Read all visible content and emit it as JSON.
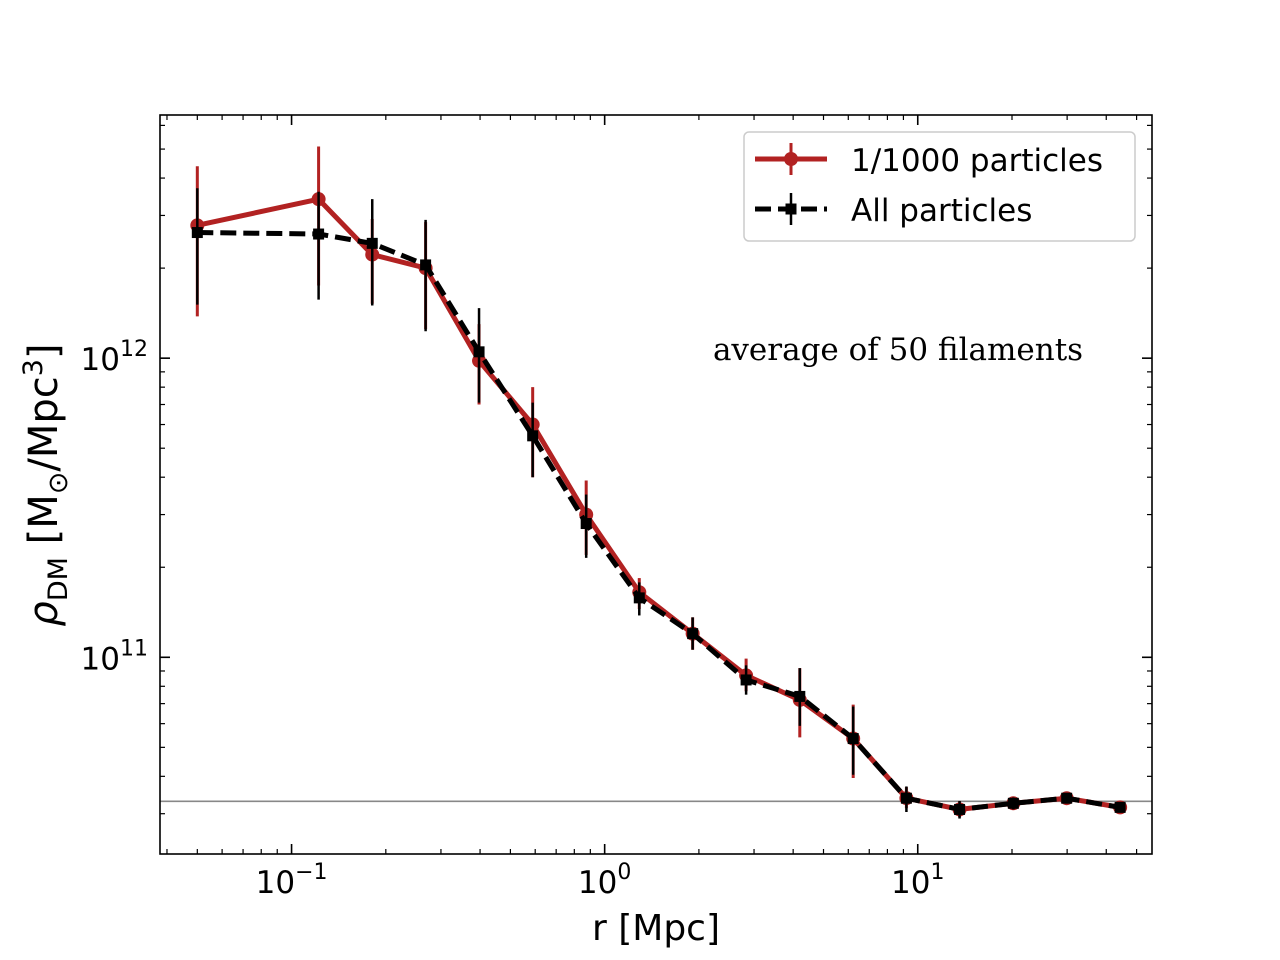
{
  "chart_data": {
    "type": "line",
    "title": "",
    "xlabel": "r [Mpc]",
    "ylabel": "ρ_DM [M⊙/Mpc³]",
    "xscale": "log",
    "yscale": "log",
    "xlim": [
      0.038,
      56
    ],
    "ylim": [
      22000000000,
      6500000000000
    ],
    "x_ticks": [
      {
        "value": 0.1,
        "base": "10",
        "exp": "−1"
      },
      {
        "value": 1,
        "base": "10",
        "exp": "0"
      },
      {
        "value": 10,
        "base": "10",
        "exp": "1"
      }
    ],
    "y_ticks": [
      {
        "value": 100000000000,
        "base": "10",
        "exp": "11"
      },
      {
        "value": 1000000000000,
        "base": "10",
        "exp": "12"
      }
    ],
    "annotation": "average of 50 filaments",
    "reference_line": {
      "y": 33000000000,
      "color": "#888888"
    },
    "legend_position": "upper right",
    "series": [
      {
        "name": "1/1000 particles",
        "color": "#b22222",
        "style": "solid",
        "marker": "circle",
        "x": [
          0.05,
          0.122,
          0.181,
          0.268,
          0.397,
          0.589,
          0.873,
          1.29,
          1.91,
          2.83,
          4.2,
          6.22,
          9.2,
          13.6,
          20.2,
          29.9,
          44.3
        ],
        "y": [
          2780000000000.0,
          3400000000000.0,
          2220000000000.0,
          2000000000000.0,
          980000000000.0,
          600000000000.0,
          300000000000.0,
          165000000000.0,
          120000000000.0,
          87000000000.0,
          72000000000.0,
          53500000000.0,
          33800000000.0,
          31000000000.0,
          32500000000.0,
          33800000000.0,
          31500000000.0
        ],
        "yerr_low": [
          1400000000000.0,
          1650000000000.0,
          700000000000.0,
          750000000000.0,
          280000000000.0,
          200000000000.0,
          80000000000.0,
          20000000000.0,
          14000000000.0,
          10000000000.0,
          18000000000.0,
          14000000000.0,
          2500000000.0,
          1800000000.0,
          1500000000.0,
          1200000000.0,
          1200000000.0
        ],
        "yerr_high": [
          1600000000000.0,
          1700000000000.0,
          700000000000.0,
          850000000000.0,
          320000000000.0,
          200000000000.0,
          90000000000.0,
          19000000000.0,
          16000000000.0,
          12000000000.0,
          20000000000.0,
          16000000000.0,
          3000000000.0,
          2000000000.0,
          1500000000.0,
          1200000000.0,
          1200000000.0
        ]
      },
      {
        "name": "All particles",
        "color": "#000000",
        "style": "dashed",
        "marker": "square",
        "x": [
          0.05,
          0.122,
          0.181,
          0.268,
          0.397,
          0.589,
          0.873,
          1.29,
          1.91,
          2.83,
          4.2,
          6.22,
          9.2,
          13.6,
          20.2,
          29.9,
          44.3
        ],
        "y": [
          2630000000000.0,
          2600000000000.0,
          2420000000000.0,
          2050000000000.0,
          1050000000000.0,
          550000000000.0,
          280000000000.0,
          158000000000.0,
          120000000000.0,
          84000000000.0,
          74000000000.0,
          53500000000.0,
          33800000000.0,
          31000000000.0,
          32500000000.0,
          33800000000.0,
          31500000000.0
        ],
        "yerr_low": [
          1120000000000.0,
          1030000000000.0,
          920000000000.0,
          820000000000.0,
          340000000000.0,
          150000000000.0,
          65000000000.0,
          20000000000.0,
          14000000000.0,
          9000000000.0,
          15000000000.0,
          13000000000.0,
          3400000000.0,
          2100000000.0,
          1500000000.0,
          1200000000.0,
          1200000000.0
        ],
        "yerr_high": [
          1070000000000.0,
          1000000000000.0,
          980000000000.0,
          850000000000.0,
          420000000000.0,
          160000000000.0,
          70000000000.0,
          20000000000.0,
          16000000000.0,
          10000000000.0,
          18000000000.0,
          15000000000.0,
          3200000000.0,
          2100000000.0,
          1500000000.0,
          1200000000.0,
          1200000000.0
        ]
      }
    ]
  }
}
